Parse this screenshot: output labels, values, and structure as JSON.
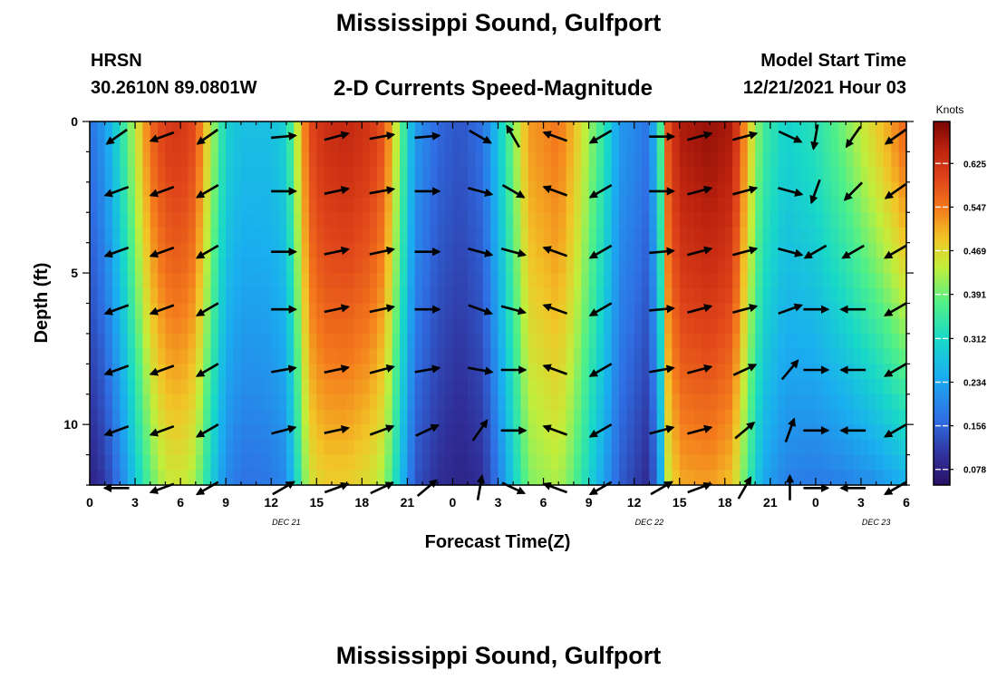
{
  "header": {
    "title": "Mississippi Sound, Gulfport",
    "station_id": "HRSN",
    "coords": "30.2610N  89.0801W",
    "chart_title": "2-D Currents Speed-Magnitude",
    "model_label": "Model Start Time",
    "model_time": "12/21/2021 Hour 03"
  },
  "footer": {
    "title": "Mississippi Sound, Gulfport"
  },
  "chart_data": {
    "type": "heatmap",
    "xlabel": "Forecast Time(Z)",
    "ylabel": "Depth (ft)",
    "x_range": [
      0,
      54
    ],
    "y_range": [
      0,
      12
    ],
    "y_inverted": true,
    "x_tick_labels": [
      "0",
      "3",
      "6",
      "9",
      "12",
      "15",
      "18",
      "21",
      "0",
      "3",
      "6",
      "9",
      "12",
      "15",
      "18",
      "21",
      "0",
      "3",
      "6"
    ],
    "y_ticks": [
      0,
      5,
      10
    ],
    "date_labels": [
      {
        "hour": 13,
        "label": "DEC 21"
      },
      {
        "hour": 37,
        "label": "DEC 22"
      },
      {
        "hour": 52,
        "label": "DEC 23"
      }
    ],
    "colorbar": {
      "unit": "Knots",
      "ticks": [
        0.078,
        0.156,
        0.234,
        0.312,
        0.391,
        0.469,
        0.547,
        0.625
      ],
      "range": [
        0.05,
        0.7
      ]
    },
    "speed_keyframes": {
      "hours": [
        0,
        1,
        2,
        3,
        4,
        5,
        6,
        7,
        8,
        9,
        10,
        11,
        12,
        13,
        13.8,
        14.5,
        15.5,
        17,
        18.5,
        19.5,
        20.5,
        21.5,
        23,
        24.5,
        26,
        27,
        28,
        29,
        31,
        32,
        34,
        35,
        36,
        37,
        37.7,
        38.2,
        39,
        41,
        42.5,
        43.5,
        44.5,
        46,
        48,
        50,
        52,
        53,
        54
      ],
      "surface": [
        0.17,
        0.22,
        0.32,
        0.44,
        0.56,
        0.61,
        0.62,
        0.59,
        0.44,
        0.3,
        0.27,
        0.27,
        0.27,
        0.3,
        0.46,
        0.59,
        0.63,
        0.64,
        0.62,
        0.58,
        0.4,
        0.22,
        0.16,
        0.14,
        0.17,
        0.28,
        0.4,
        0.52,
        0.55,
        0.5,
        0.34,
        0.22,
        0.2,
        0.17,
        0.34,
        0.58,
        0.66,
        0.68,
        0.66,
        0.5,
        0.36,
        0.3,
        0.33,
        0.4,
        0.48,
        0.52,
        0.57
      ],
      "bottom": [
        0.08,
        0.11,
        0.18,
        0.28,
        0.38,
        0.44,
        0.45,
        0.42,
        0.3,
        0.2,
        0.17,
        0.17,
        0.18,
        0.2,
        0.33,
        0.45,
        0.48,
        0.48,
        0.46,
        0.42,
        0.28,
        0.14,
        0.1,
        0.08,
        0.1,
        0.18,
        0.29,
        0.4,
        0.43,
        0.38,
        0.23,
        0.15,
        0.12,
        0.09,
        0.22,
        0.44,
        0.51,
        0.52,
        0.49,
        0.36,
        0.24,
        0.19,
        0.18,
        0.19,
        0.21,
        0.23,
        0.25
      ]
    },
    "arrow_depths": [
      0.5,
      2.3,
      4.3,
      6.2,
      8.2,
      10.2,
      12.1
    ],
    "arrow_columns": [
      {
        "hour": 1.8,
        "angles": [
          215,
          200,
          200,
          200,
          200,
          200,
          180
        ]
      },
      {
        "hour": 4.8,
        "angles": [
          200,
          200,
          200,
          200,
          200,
          200,
          200
        ]
      },
      {
        "hour": 7.8,
        "angles": [
          215,
          210,
          210,
          210,
          210,
          210,
          210
        ]
      },
      {
        "hour": 12.8,
        "angles": [
          5,
          0,
          0,
          0,
          10,
          15,
          30
        ]
      },
      {
        "hour": 16.3,
        "angles": [
          15,
          12,
          12,
          12,
          12,
          12,
          20
        ]
      },
      {
        "hour": 19.3,
        "angles": [
          10,
          10,
          12,
          12,
          15,
          20,
          25
        ]
      },
      {
        "hour": 22.3,
        "angles": [
          5,
          0,
          0,
          0,
          10,
          25,
          40
        ]
      },
      {
        "hour": 25.8,
        "angles": [
          330,
          345,
          345,
          340,
          350,
          55,
          80
        ]
      },
      {
        "hour": 28.0,
        "angles": [
          120,
          330,
          345,
          345,
          0,
          0,
          335
        ]
      },
      {
        "hour": 30.8,
        "angles": [
          160,
          160,
          160,
          160,
          160,
          160,
          160
        ]
      },
      {
        "hour": 33.8,
        "angles": [
          210,
          210,
          210,
          210,
          210,
          210,
          210
        ]
      },
      {
        "hour": 37.8,
        "angles": [
          0,
          0,
          5,
          5,
          10,
          15,
          30
        ]
      },
      {
        "hour": 40.3,
        "angles": [
          15,
          15,
          15,
          15,
          15,
          15,
          20
        ]
      },
      {
        "hour": 43.3,
        "angles": [
          15,
          15,
          15,
          15,
          25,
          40,
          60
        ]
      },
      {
        "hour": 46.3,
        "angles": [
          335,
          345,
          345,
          20,
          50,
          70,
          90
        ]
      },
      {
        "hour": 48.0,
        "angles": [
          260,
          250,
          210,
          0,
          0,
          0,
          0
        ]
      },
      {
        "hour": 50.5,
        "angles": [
          235,
          225,
          210,
          180,
          180,
          180,
          180
        ]
      },
      {
        "hour": 53.3,
        "angles": [
          215,
          215,
          210,
          210,
          210,
          210,
          210
        ]
      }
    ]
  }
}
